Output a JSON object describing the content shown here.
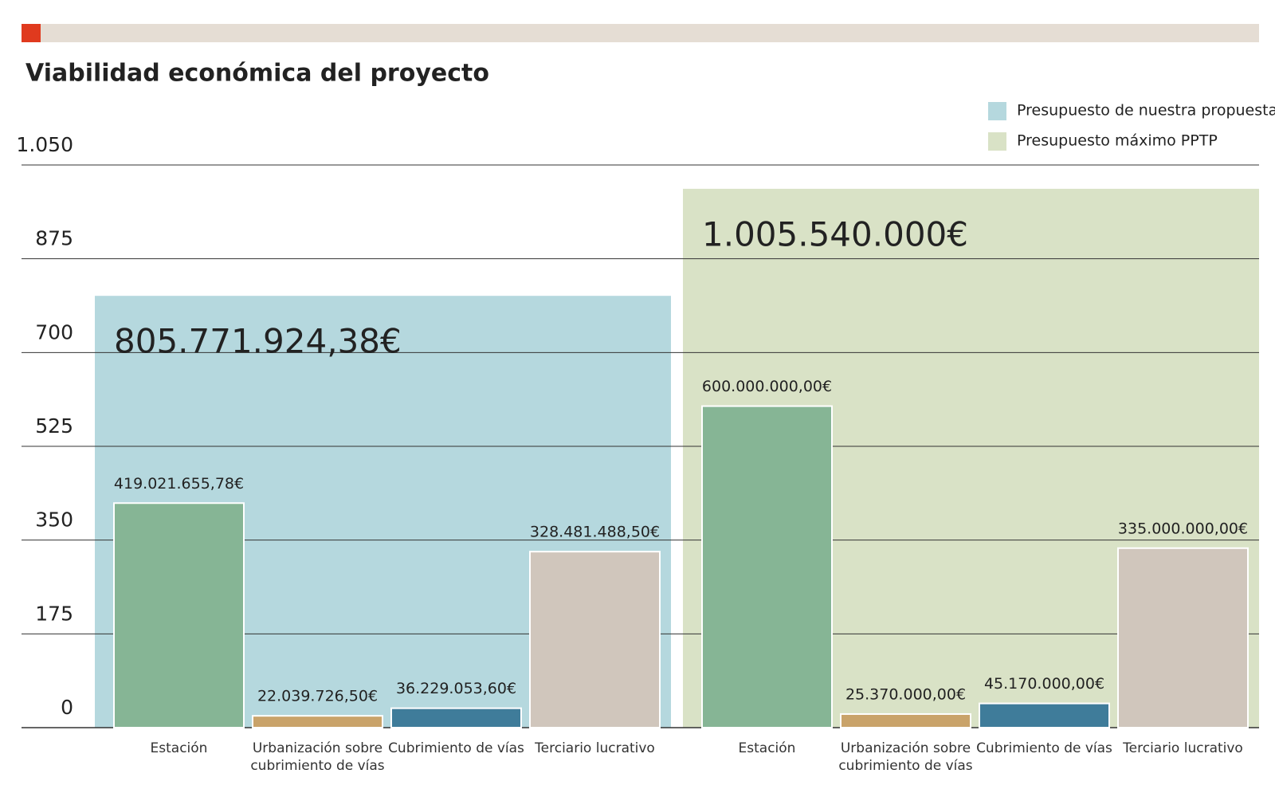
{
  "chart_data": {
    "type": "bar",
    "title": "Viabilidad económica del proyecto",
    "categories": [
      "Estación",
      "Urbanización sobre cubrimiento de vías",
      "Cubrimiento de vías",
      "Terciario lucrativo"
    ],
    "bar_colors": [
      "#86b595",
      "#c9a36a",
      "#3f7c9a",
      "#d0c6bc"
    ],
    "ylim": [
      0,
      1050
    ],
    "yticks": [
      0,
      175,
      350,
      525,
      700,
      875,
      {
        "value": 1050,
        "label": "1.050"
      }
    ],
    "grid": true,
    "legend": "top-right",
    "series": [
      {
        "name": "Presupuesto de nuestra propuesta",
        "color": "#b5d8de",
        "total": 805.77192438,
        "total_label": "805.771.924,38€",
        "values": [
          419.02165578,
          22.0397265,
          36.2290536,
          328.4814885
        ],
        "value_labels": [
          "419.021.655,78€",
          "22.039.726,50€",
          "36.229.053,60€",
          "328.481.488,50€"
        ]
      },
      {
        "name": "Presupuesto máximo PPTP",
        "color": "#d9e2c6",
        "total": 1005.54,
        "total_label": "1.005.540.000€",
        "values": [
          600,
          25.37,
          45.17,
          335
        ],
        "value_labels": [
          "600.000.000,00€",
          "25.370.000,00€",
          "45.170.000,00€",
          "335.000.000,00€"
        ]
      }
    ]
  }
}
